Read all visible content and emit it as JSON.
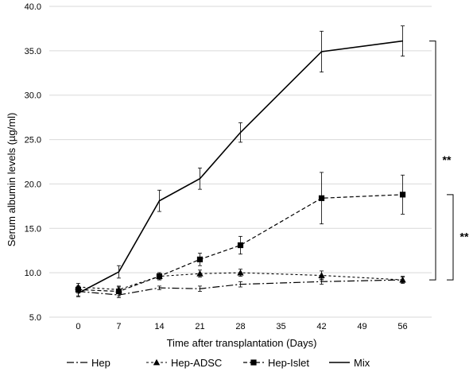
{
  "chart_data": {
    "type": "line",
    "title": "",
    "xlabel": "Time after transplantation (Days)",
    "ylabel": "Serum albumin levels (µg/ml)",
    "xlim": [
      -5,
      61
    ],
    "ylim": [
      5.0,
      40.0
    ],
    "x_ticks": [
      0,
      7,
      14,
      21,
      28,
      35,
      42,
      49,
      56
    ],
    "y_ticks": [
      "5.0",
      "10.0",
      "15.0",
      "20.0",
      "25.0",
      "30.0",
      "35.0",
      "40.0"
    ],
    "grid": "horizontal",
    "legend_position": "bottom",
    "series": [
      {
        "name": "Hep",
        "dash": "dash-dot",
        "marker": "none",
        "x": [
          0,
          7,
          14,
          21,
          28,
          42,
          56
        ],
        "y": [
          7.9,
          7.5,
          8.3,
          8.2,
          8.7,
          9.0,
          9.2
        ],
        "err": [
          0.5,
          0.3,
          0.2,
          0.3,
          0.3,
          0.3,
          0.4
        ]
      },
      {
        "name": "Hep-ADSC",
        "dash": "short-dash",
        "marker": "triangle",
        "x": [
          0,
          7,
          14,
          21,
          28,
          42,
          56
        ],
        "y": [
          8.4,
          8.1,
          9.6,
          9.9,
          10.0,
          9.7,
          9.2
        ],
        "err": [
          0.4,
          0.4,
          0.4,
          0.4,
          0.4,
          0.5,
          0.3
        ]
      },
      {
        "name": "Hep-Islet",
        "dash": "dash",
        "marker": "square",
        "x": [
          0,
          7,
          14,
          21,
          28,
          42,
          56
        ],
        "y": [
          8.1,
          7.9,
          9.6,
          11.5,
          13.1,
          18.4,
          18.8
        ],
        "err": [
          0.4,
          0.5,
          0.4,
          0.7,
          1.0,
          2.9,
          2.2
        ]
      },
      {
        "name": "Mix",
        "dash": "solid",
        "marker": "none",
        "x": [
          0,
          7,
          14,
          21,
          28,
          42,
          56
        ],
        "y": [
          7.7,
          10.1,
          18.1,
          20.6,
          25.8,
          34.9,
          36.1
        ],
        "err": [
          0.4,
          0.7,
          1.2,
          1.2,
          1.1,
          2.3,
          1.7
        ]
      }
    ],
    "annotations": [
      {
        "text": "**",
        "from_series": "Mix",
        "to_series": "Hep-ADSC"
      },
      {
        "text": "**",
        "from_series": "Hep-Islet",
        "to_series": "Hep-ADSC"
      }
    ]
  }
}
